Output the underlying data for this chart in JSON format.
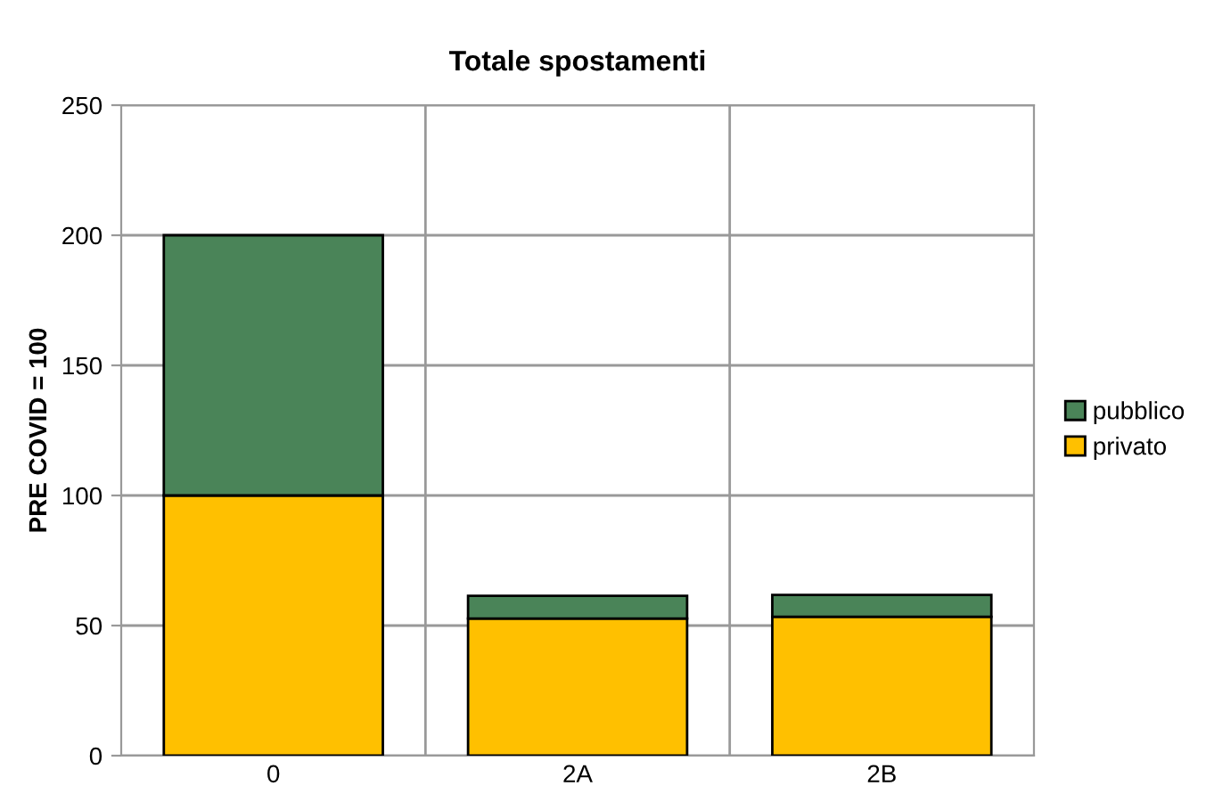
{
  "chart_data": {
    "type": "bar",
    "title": "Totale spostamenti",
    "ylabel": "PRE COVID = 100",
    "categories": [
      "0",
      "2A",
      "2B"
    ],
    "stacked": true,
    "series": [
      {
        "name": "privato",
        "color": "#ffc000",
        "values": [
          100,
          52.7,
          53.4
        ]
      },
      {
        "name": "pubblico",
        "color": "#4a8458",
        "values": [
          100,
          8.7,
          8.4
        ]
      }
    ],
    "ylim": [
      0,
      250
    ],
    "yticks": [
      0,
      50,
      100,
      150,
      200,
      250
    ],
    "grid": true,
    "legend": "right"
  }
}
